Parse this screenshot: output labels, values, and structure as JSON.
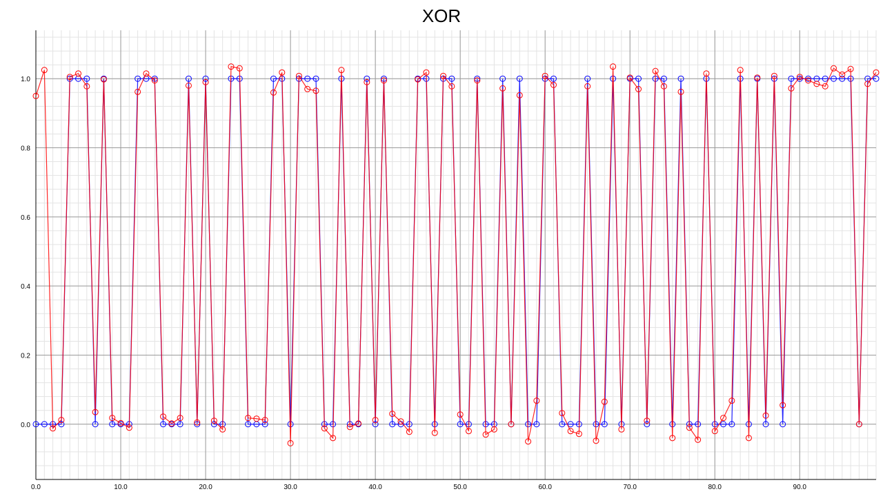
{
  "chart_data": {
    "type": "line",
    "title": "XOR",
    "xlabel": "",
    "ylabel": "",
    "xlim": [
      0,
      99
    ],
    "ylim": [
      -0.16,
      1.14
    ],
    "x_ticks": [
      0,
      10,
      20,
      30,
      40,
      50,
      60,
      70,
      80,
      90
    ],
    "x_tick_labels": [
      "0.0",
      "10.0",
      "20.0",
      "30.0",
      "40.0",
      "50.0",
      "60.0",
      "70.0",
      "80.0",
      "90.0"
    ],
    "y_ticks": [
      0,
      0.2,
      0.4,
      0.6,
      0.8,
      1.0
    ],
    "y_tick_labels": [
      "0.0",
      "0.2",
      "0.4",
      "0.6",
      "0.8",
      "1.0"
    ],
    "grid": true,
    "legend": "none",
    "series": [
      {
        "color": "#0000ff",
        "marker": "open-circle",
        "values": [
          0,
          0,
          0,
          0,
          1,
          1,
          1,
          0,
          1,
          0,
          0,
          0,
          1,
          1,
          1,
          0,
          0,
          0,
          1,
          0,
          1,
          0,
          0,
          1,
          1,
          0,
          0,
          0,
          1,
          1,
          0,
          1,
          1,
          1,
          0,
          0,
          1,
          0,
          0,
          1,
          0,
          1,
          0,
          0,
          0,
          1,
          1,
          0,
          1,
          1,
          0,
          0,
          1,
          0,
          0,
          1,
          0,
          1,
          0,
          0,
          1,
          1,
          0,
          0,
          0,
          1,
          0,
          0,
          1,
          0,
          1,
          1,
          0,
          1,
          1,
          0,
          1,
          0,
          0,
          1,
          0,
          0,
          0,
          1,
          0,
          1,
          0,
          1,
          0,
          1,
          1,
          1,
          1,
          1,
          1,
          1,
          1,
          0,
          1,
          1
        ]
      },
      {
        "color": "#ff0000",
        "marker": "open-circle",
        "values": [
          0.95,
          1.025,
          -0.012,
          0.012,
          1.005,
          1.015,
          0.978,
          0.035,
          0.998,
          0.018,
          0.003,
          -0.01,
          0.962,
          1.015,
          0.995,
          0.022,
          0.002,
          0.018,
          0.98,
          0.005,
          0.99,
          0.01,
          -0.015,
          1.035,
          1.03,
          0.018,
          0.016,
          0.012,
          0.96,
          1.018,
          -0.055,
          1.008,
          0.97,
          0.965,
          -0.012,
          -0.04,
          1.025,
          -0.008,
          0.002,
          0.99,
          0.012,
          0.995,
          0.03,
          0.008,
          -0.022,
          0.998,
          1.018,
          -0.025,
          1.008,
          0.978,
          0.028,
          -0.02,
          0.995,
          -0.03,
          -0.015,
          0.972,
          0.0,
          0.952,
          -0.05,
          0.068,
          1.008,
          0.982,
          0.032,
          -0.02,
          -0.028,
          0.978,
          -0.048,
          0.065,
          1.035,
          -0.015,
          1.003,
          0.97,
          0.01,
          1.022,
          0.978,
          -0.04,
          0.962,
          -0.01,
          -0.045,
          1.015,
          -0.02,
          0.018,
          0.068,
          1.025,
          -0.04,
          1.003,
          0.025,
          1.008,
          0.055,
          0.972,
          1.005,
          0.995,
          0.985,
          0.978,
          1.03,
          1.012,
          1.028,
          0.0,
          0.985,
          1.018
        ]
      }
    ]
  }
}
